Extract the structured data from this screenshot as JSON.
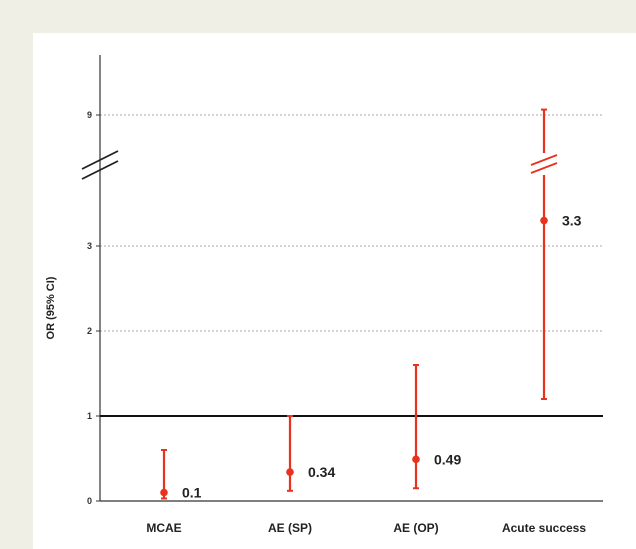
{
  "chart_data": {
    "type": "scatter",
    "title": "",
    "xlabel": "",
    "ylabel": "OR (95% CI)",
    "y_axis_break": [
      3.8,
      8.7
    ],
    "y_ticks": [
      0,
      1,
      2,
      3,
      9
    ],
    "reference_line": 1,
    "grid": true,
    "categories": [
      "MCAE",
      "AE (SP)",
      "AE (OP)",
      "Acute success"
    ],
    "series": [
      {
        "values": [
          0.1,
          0.34,
          0.49,
          3.3
        ],
        "ci_lower": [
          0.03,
          0.12,
          0.15,
          1.2
        ],
        "ci_upper": [
          0.6,
          1.0,
          1.6,
          9.3
        ]
      }
    ],
    "value_labels": [
      "0.1",
      "0.34",
      "0.49",
      "3.3"
    ],
    "colors": {
      "marker": "#e8321e",
      "reference": "#111111",
      "grid": "#aaaaaa",
      "background": "#efefe6"
    }
  }
}
